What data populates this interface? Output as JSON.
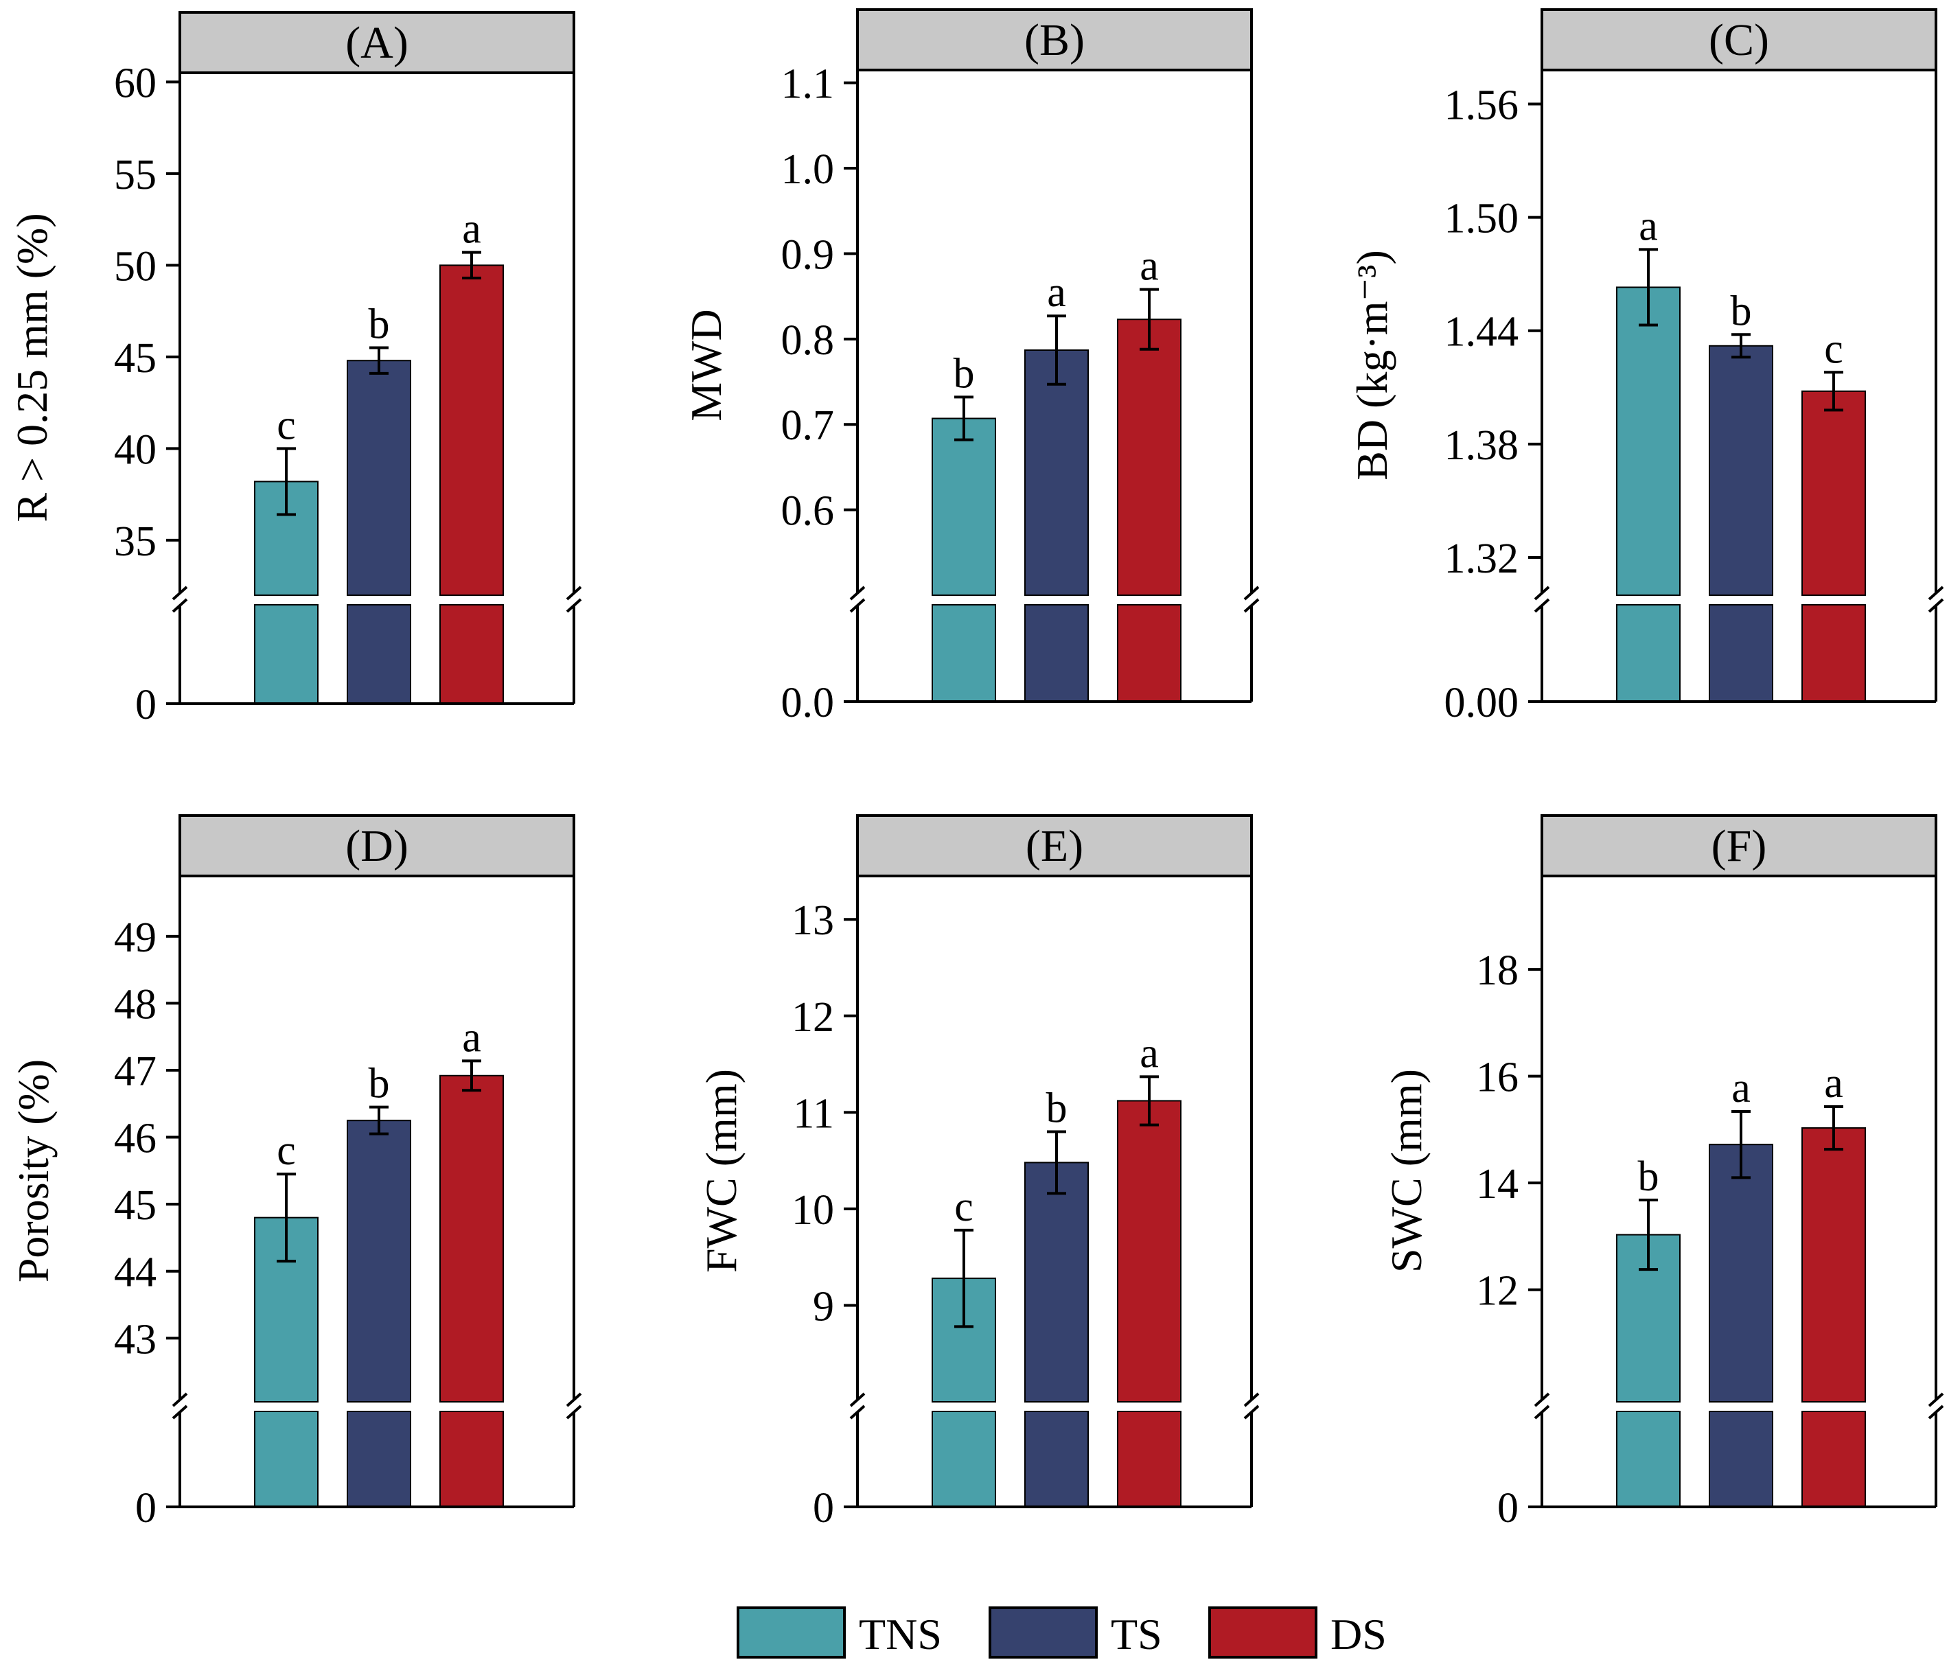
{
  "colors": {
    "TNS": "#4aa0a9",
    "TS": "#36426e",
    "DS": "#b01b24",
    "strip": "#c8c8c8"
  },
  "legend": [
    {
      "key": "TNS",
      "label": "TNS"
    },
    {
      "key": "TS",
      "label": "TS"
    },
    {
      "key": "DS",
      "label": "DS"
    }
  ],
  "chart_data": [
    {
      "type": "bar",
      "panel": "(A)",
      "ylabel": "R > 0.25 mm (%)",
      "categories": [
        "TNS",
        "TS",
        "DS"
      ],
      "values": [
        38.2,
        44.8,
        50.0
      ],
      "errors": [
        1.8,
        0.7,
        0.7
      ],
      "letters": [
        "c",
        "b",
        "a"
      ],
      "ylim": [
        32,
        60.5
      ],
      "yticks": [
        35,
        40,
        45,
        50,
        55,
        60
      ],
      "ytick_labels": [
        "35",
        "40",
        "45",
        "50",
        "55",
        "60"
      ],
      "break_low_label": "0"
    },
    {
      "type": "bar",
      "panel": "(B)",
      "ylabel": "MWD",
      "categories": [
        "TNS",
        "TS",
        "DS"
      ],
      "values": [
        0.707,
        0.787,
        0.823
      ],
      "errors": [
        0.025,
        0.04,
        0.035
      ],
      "letters": [
        "b",
        "a",
        "a"
      ],
      "ylim": [
        0.5,
        1.115
      ],
      "yticks": [
        0.6,
        0.7,
        0.8,
        0.9,
        1.0,
        1.1
      ],
      "ytick_labels": [
        "0.6",
        "0.7",
        "0.8",
        "0.9",
        "1.0",
        "1.1"
      ],
      "break_low_label": "0.0"
    },
    {
      "type": "bar",
      "panel": "(C)",
      "ylabel": "BD (kg·m⁻³)",
      "categories": [
        "TNS",
        "TS",
        "DS"
      ],
      "values": [
        1.463,
        1.432,
        1.408
      ],
      "errors": [
        0.02,
        0.006,
        0.01
      ],
      "letters": [
        "a",
        "b",
        "c"
      ],
      "ylim": [
        1.3,
        1.578
      ],
      "yticks": [
        1.32,
        1.38,
        1.44,
        1.5,
        1.56
      ],
      "ytick_labels": [
        "1.32",
        "1.38",
        "1.44",
        "1.50",
        "1.56"
      ],
      "break_low_label": "0.00"
    },
    {
      "type": "bar",
      "panel": "(D)",
      "ylabel": "Porosity (%)",
      "categories": [
        "TNS",
        "TS",
        "DS"
      ],
      "values": [
        44.8,
        46.25,
        46.92
      ],
      "errors": [
        0.65,
        0.2,
        0.22
      ],
      "letters": [
        "c",
        "b",
        "a"
      ],
      "ylim": [
        42.05,
        49.9
      ],
      "yticks": [
        43,
        44,
        45,
        46,
        47,
        48,
        49
      ],
      "ytick_labels": [
        "43",
        "44",
        "45",
        "46",
        "47",
        "48",
        "49"
      ],
      "break_low_label": "0"
    },
    {
      "type": "bar",
      "panel": "(E)",
      "ylabel": "FWC (mm)",
      "categories": [
        "TNS",
        "TS",
        "DS"
      ],
      "values": [
        9.28,
        10.48,
        11.12
      ],
      "errors": [
        0.5,
        0.32,
        0.25
      ],
      "letters": [
        "c",
        "b",
        "a"
      ],
      "ylim": [
        8.0,
        13.45
      ],
      "yticks": [
        9,
        10,
        11,
        12,
        13
      ],
      "ytick_labels": [
        "9",
        "10",
        "11",
        "12",
        "13"
      ],
      "break_low_label": "0"
    },
    {
      "type": "bar",
      "panel": "(F)",
      "ylabel": "SWC (mm)",
      "categories": [
        "TNS",
        "TS",
        "DS"
      ],
      "values": [
        13.03,
        14.72,
        15.03
      ],
      "errors": [
        0.65,
        0.62,
        0.4
      ],
      "letters": [
        "b",
        "a",
        "a"
      ],
      "ylim": [
        9.9,
        19.75
      ],
      "yticks": [
        12,
        14,
        16,
        18
      ],
      "ytick_labels": [
        "12",
        "14",
        "16",
        "18"
      ],
      "break_low_label": "0"
    }
  ]
}
